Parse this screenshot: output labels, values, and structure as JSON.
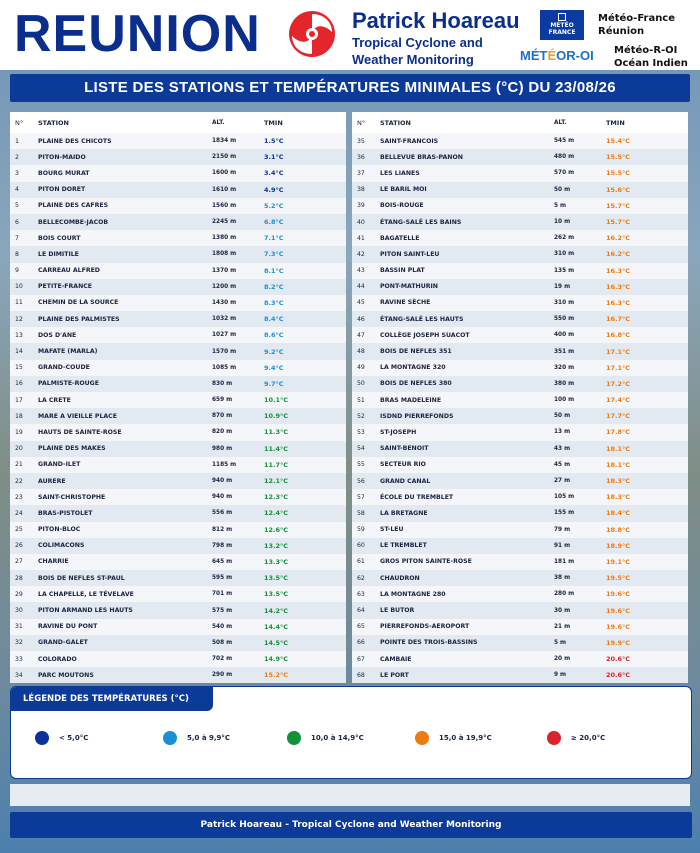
{
  "header": {
    "title": "REUNION",
    "brand_name": "Patrick Hoareau",
    "brand_sub1": "Tropical Cyclone and",
    "brand_sub2": "Weather Monitoring",
    "mf_logo_l1": "MÉTÉO",
    "mf_logo_l2": "FRANCE",
    "mf_l1": "Météo-France",
    "mf_l2": "Réunion",
    "oi_logo_a": "MÉT",
    "oi_logo_b": "É",
    "oi_logo_c": "OR-OI",
    "oi_l1": "Météo-R-OI",
    "oi_l2": "Océan Indien"
  },
  "banner": "LISTE DES STATIONS ET TEMPÉRATURES MINIMALES (°C) DU 23/08/26",
  "columns": {
    "no": "N°",
    "station": "STATION",
    "alt": "ALT.",
    "tmin": "TMIN"
  },
  "colors": {
    "lt5": "#0b3399",
    "5to10": "#1a8fd6",
    "10to15": "#13913a",
    "15to20": "#f07a12",
    "ge20": "#d9222a"
  },
  "stations": [
    {
      "no": "1",
      "name": "PLAINE DES CHICOTS",
      "alt": "1834 m",
      "tmin": "1.5°C",
      "v": 1.5
    },
    {
      "no": "2",
      "name": "PITON-MAIDO",
      "alt": "2150 m",
      "tmin": "3.1°C",
      "v": 3.1
    },
    {
      "no": "3",
      "name": "BOURG MURAT",
      "alt": "1600 m",
      "tmin": "3.4°C",
      "v": 3.4
    },
    {
      "no": "4",
      "name": "PITON DORET",
      "alt": "1610 m",
      "tmin": "4.9°C",
      "v": 4.9
    },
    {
      "no": "5",
      "name": "PLAINE DES CAFRES",
      "alt": "1560 m",
      "tmin": "5.2°C",
      "v": 5.2
    },
    {
      "no": "6",
      "name": "BELLECOMBE-JACOB",
      "alt": "2245 m",
      "tmin": "6.8°C",
      "v": 6.8
    },
    {
      "no": "7",
      "name": "BOIS COURT",
      "alt": "1380 m",
      "tmin": "7.1°C",
      "v": 7.1
    },
    {
      "no": "8",
      "name": "LE DIMITILE",
      "alt": "1808 m",
      "tmin": "7.3°C",
      "v": 7.3
    },
    {
      "no": "9",
      "name": "CARREAU ALFRED",
      "alt": "1370 m",
      "tmin": "8.1°C",
      "v": 8.1
    },
    {
      "no": "10",
      "name": "PETITE-FRANCE",
      "alt": "1200 m",
      "tmin": "8.2°C",
      "v": 8.2
    },
    {
      "no": "11",
      "name": "CHEMIN DE LA SOURCE",
      "alt": "1430 m",
      "tmin": "8.3°C",
      "v": 8.3
    },
    {
      "no": "12",
      "name": "PLAINE DES PALMISTES",
      "alt": "1032 m",
      "tmin": "8.4°C",
      "v": 8.4
    },
    {
      "no": "13",
      "name": "DOS D'ANE",
      "alt": "1027 m",
      "tmin": "8.6°C",
      "v": 8.6
    },
    {
      "no": "14",
      "name": "MAFATE (MARLA)",
      "alt": "1570 m",
      "tmin": "9.2°C",
      "v": 9.2
    },
    {
      "no": "15",
      "name": "GRAND-COUDE",
      "alt": "1085 m",
      "tmin": "9.4°C",
      "v": 9.4
    },
    {
      "no": "16",
      "name": "PALMISTE-ROUGE",
      "alt": "830 m",
      "tmin": "9.7°C",
      "v": 9.7
    },
    {
      "no": "17",
      "name": "LA CRETE",
      "alt": "659 m",
      "tmin": "10.1°C",
      "v": 10.1
    },
    {
      "no": "18",
      "name": "MARE A VIEILLE PLACE",
      "alt": "870 m",
      "tmin": "10.9°C",
      "v": 10.9
    },
    {
      "no": "19",
      "name": "HAUTS DE SAINTE-ROSE",
      "alt": "820 m",
      "tmin": "11.3°C",
      "v": 11.3
    },
    {
      "no": "20",
      "name": "PLAINE DES MAKES",
      "alt": "980 m",
      "tmin": "11.4°C",
      "v": 11.4
    },
    {
      "no": "21",
      "name": "GRAND-ILET",
      "alt": "1185 m",
      "tmin": "11.7°C",
      "v": 11.7
    },
    {
      "no": "22",
      "name": "AURERE",
      "alt": "940 m",
      "tmin": "12.1°C",
      "v": 12.1
    },
    {
      "no": "23",
      "name": "SAINT-CHRISTOPHE",
      "alt": "940 m",
      "tmin": "12.3°C",
      "v": 12.3
    },
    {
      "no": "24",
      "name": "BRAS-PISTOLET",
      "alt": "556 m",
      "tmin": "12.4°C",
      "v": 12.4
    },
    {
      "no": "25",
      "name": "PITON-BLOC",
      "alt": "812 m",
      "tmin": "12.6°C",
      "v": 12.6
    },
    {
      "no": "26",
      "name": "COLIMACONS",
      "alt": "798 m",
      "tmin": "13.2°C",
      "v": 13.2
    },
    {
      "no": "27",
      "name": "CHARRIE",
      "alt": "645 m",
      "tmin": "13.3°C",
      "v": 13.3
    },
    {
      "no": "28",
      "name": "BOIS DE NEFLES ST-PAUL",
      "alt": "595 m",
      "tmin": "13.5°C",
      "v": 13.5
    },
    {
      "no": "29",
      "name": "LA CHAPELLE, LE TÉVELAVE",
      "alt": "701 m",
      "tmin": "13.5°C",
      "v": 13.5
    },
    {
      "no": "30",
      "name": "PITON ARMAND LES HAUTS",
      "alt": "575 m",
      "tmin": "14.2°C",
      "v": 14.2
    },
    {
      "no": "31",
      "name": "RAVINE DU PONT",
      "alt": "540 m",
      "tmin": "14.4°C",
      "v": 14.4
    },
    {
      "no": "32",
      "name": "GRAND-GALET",
      "alt": "508 m",
      "tmin": "14.5°C",
      "v": 14.5
    },
    {
      "no": "33",
      "name": "COLORADO",
      "alt": "702 m",
      "tmin": "14.9°C",
      "v": 14.9
    },
    {
      "no": "34",
      "name": "PARC MOUTONS",
      "alt": "290 m",
      "tmin": "15.2°C",
      "v": 15.2
    },
    {
      "no": "35",
      "name": "SAINT-FRANCOIS",
      "alt": "545 m",
      "tmin": "15.4°C",
      "v": 15.4
    },
    {
      "no": "36",
      "name": "BELLEVUE BRAS-PANON",
      "alt": "480 m",
      "tmin": "15.5°C",
      "v": 15.5
    },
    {
      "no": "37",
      "name": "LES LIANES",
      "alt": "570 m",
      "tmin": "15.5°C",
      "v": 15.5
    },
    {
      "no": "38",
      "name": "LE BARIL MOI",
      "alt": "50 m",
      "tmin": "15.6°C",
      "v": 15.6
    },
    {
      "no": "39",
      "name": "BOIS-ROUGE",
      "alt": "5 m",
      "tmin": "15.7°C",
      "v": 15.7
    },
    {
      "no": "40",
      "name": "ÉTANG-SALÉ LES BAINS",
      "alt": "10 m",
      "tmin": "15.7°C",
      "v": 15.7
    },
    {
      "no": "41",
      "name": "BAGATELLE",
      "alt": "262 m",
      "tmin": "16.2°C",
      "v": 16.2
    },
    {
      "no": "42",
      "name": "PITON SAINT-LEU",
      "alt": "310 m",
      "tmin": "16.2°C",
      "v": 16.2
    },
    {
      "no": "43",
      "name": "BASSIN PLAT",
      "alt": "135 m",
      "tmin": "16.3°C",
      "v": 16.3
    },
    {
      "no": "44",
      "name": "PONT-MATHURIN",
      "alt": "19 m",
      "tmin": "16.3°C",
      "v": 16.3
    },
    {
      "no": "45",
      "name": "RAVINE SÈCHE",
      "alt": "310 m",
      "tmin": "16.3°C",
      "v": 16.3
    },
    {
      "no": "46",
      "name": "ÉTANG-SALÉ LES HAUTS",
      "alt": "550 m",
      "tmin": "16.7°C",
      "v": 16.7
    },
    {
      "no": "47",
      "name": "COLLÈGE JOSEPH SUACOT",
      "alt": "400 m",
      "tmin": "16.8°C",
      "v": 16.8
    },
    {
      "no": "48",
      "name": "BOIS DE NEFLES 351",
      "alt": "351 m",
      "tmin": "17.1°C",
      "v": 17.1
    },
    {
      "no": "49",
      "name": "LA MONTAGNE 320",
      "alt": "320 m",
      "tmin": "17.1°C",
      "v": 17.1
    },
    {
      "no": "50",
      "name": "BOIS DE NEFLES 380",
      "alt": "380 m",
      "tmin": "17.2°C",
      "v": 17.2
    },
    {
      "no": "51",
      "name": "BRAS MADELEINE",
      "alt": "100 m",
      "tmin": "17.4°C",
      "v": 17.4
    },
    {
      "no": "52",
      "name": "ISDND PIERREFONDS",
      "alt": "50 m",
      "tmin": "17.7°C",
      "v": 17.7
    },
    {
      "no": "53",
      "name": "ST-JOSEPH",
      "alt": "13 m",
      "tmin": "17.8°C",
      "v": 17.8
    },
    {
      "no": "54",
      "name": "SAINT-BENOIT",
      "alt": "43 m",
      "tmin": "18.1°C",
      "v": 18.1
    },
    {
      "no": "55",
      "name": "SECTEUR RIO",
      "alt": "45 m",
      "tmin": "18.1°C",
      "v": 18.1
    },
    {
      "no": "56",
      "name": "GRAND CANAL",
      "alt": "27 m",
      "tmin": "18.3°C",
      "v": 18.3
    },
    {
      "no": "57",
      "name": "ÉCOLE DU TREMBLET",
      "alt": "105 m",
      "tmin": "18.3°C",
      "v": 18.3
    },
    {
      "no": "58",
      "name": "LA BRETAGNE",
      "alt": "155 m",
      "tmin": "18.4°C",
      "v": 18.4
    },
    {
      "no": "59",
      "name": "ST-LEU",
      "alt": "79 m",
      "tmin": "18.8°C",
      "v": 18.8
    },
    {
      "no": "60",
      "name": "LE TREMBLET",
      "alt": "91 m",
      "tmin": "18.9°C",
      "v": 18.9
    },
    {
      "no": "61",
      "name": "GROS PITON SAINTE-ROSE",
      "alt": "181 m",
      "tmin": "19.1°C",
      "v": 19.1
    },
    {
      "no": "62",
      "name": "CHAUDRON",
      "alt": "38 m",
      "tmin": "19.5°C",
      "v": 19.5
    },
    {
      "no": "63",
      "name": "LA MONTAGNE 280",
      "alt": "280 m",
      "tmin": "19.6°C",
      "v": 19.6
    },
    {
      "no": "64",
      "name": "LE BUTOR",
      "alt": "30 m",
      "tmin": "19.6°C",
      "v": 19.6
    },
    {
      "no": "65",
      "name": "PIERREFONDS-AEROPORT",
      "alt": "21 m",
      "tmin": "19.6°C",
      "v": 19.6
    },
    {
      "no": "66",
      "name": "POINTE DES TROIS-BASSINS",
      "alt": "5 m",
      "tmin": "19.9°C",
      "v": 19.9
    },
    {
      "no": "67",
      "name": "CAMBAIE",
      "alt": "20 m",
      "tmin": "20.6°C",
      "v": 20.6
    },
    {
      "no": "68",
      "name": "LE PORT",
      "alt": "9 m",
      "tmin": "20.6°C",
      "v": 20.6
    }
  ],
  "legend": {
    "title": "LÉGENDE DES TEMPÉRATURES (°C)",
    "items": [
      {
        "label": "< 5,0°C",
        "color": "#0b3399"
      },
      {
        "label": "5,0 à 9,9°C",
        "color": "#1a8fd6"
      },
      {
        "label": "10,0 à 14,9°C",
        "color": "#13913a"
      },
      {
        "label": "15,0 à 19,9°C",
        "color": "#f07a12"
      },
      {
        "label": "≥ 20,0°C",
        "color": "#d9222a"
      }
    ]
  },
  "footer": "Patrick Hoareau - Tropical Cyclone and Weather Monitoring"
}
